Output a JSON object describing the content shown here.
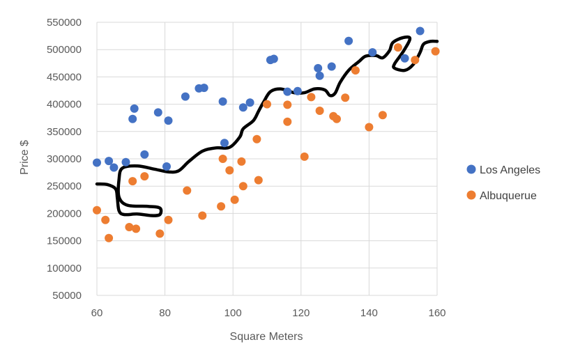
{
  "chart_data": {
    "type": "scatter",
    "title": "",
    "xlabel": "Square Meters",
    "ylabel": "Price $",
    "xlim": [
      60,
      160
    ],
    "ylim": [
      50000,
      550000
    ],
    "x_ticks": [
      "60",
      "80",
      "100",
      "120",
      "140",
      "160"
    ],
    "y_ticks": [
      "50000",
      "100000",
      "150000",
      "200000",
      "250000",
      "300000",
      "350000",
      "400000",
      "450000",
      "500000",
      "550000"
    ],
    "grid": true,
    "legend_position": "right",
    "series": [
      {
        "name": "Los Angeles",
        "color": "#4472c4",
        "points": [
          [
            60,
            293000
          ],
          [
            63.5,
            296000
          ],
          [
            65,
            284000
          ],
          [
            68.5,
            294000
          ],
          [
            70.5,
            373000
          ],
          [
            71,
            392000
          ],
          [
            74,
            308000
          ],
          [
            78,
            385000
          ],
          [
            80.5,
            286000
          ],
          [
            81,
            370000
          ],
          [
            86,
            414000
          ],
          [
            90,
            429000
          ],
          [
            91.5,
            430000
          ],
          [
            97,
            405000
          ],
          [
            97.5,
            329000
          ],
          [
            103,
            394000
          ],
          [
            105,
            403000
          ],
          [
            111,
            481000
          ],
          [
            112,
            483000
          ],
          [
            116,
            423000
          ],
          [
            119,
            424000
          ],
          [
            125,
            466000
          ],
          [
            125.5,
            452000
          ],
          [
            129,
            469000
          ],
          [
            134,
            516000
          ],
          [
            141,
            495000
          ],
          [
            150.5,
            484000
          ],
          [
            155,
            534000
          ]
        ]
      },
      {
        "name": "Albuquerue",
        "color": "#ed7d31",
        "points": [
          [
            60,
            206000
          ],
          [
            62.5,
            188000
          ],
          [
            63.5,
            155000
          ],
          [
            69.5,
            175000
          ],
          [
            70.5,
            259000
          ],
          [
            71.5,
            172000
          ],
          [
            74,
            268000
          ],
          [
            78.5,
            163000
          ],
          [
            81,
            188000
          ],
          [
            86.5,
            242000
          ],
          [
            91,
            196000
          ],
          [
            96.5,
            213000
          ],
          [
            97,
            300000
          ],
          [
            99,
            279000
          ],
          [
            100.5,
            225000
          ],
          [
            102.5,
            295000
          ],
          [
            103,
            250000
          ],
          [
            107,
            336000
          ],
          [
            107.5,
            261000
          ],
          [
            110,
            400000
          ],
          [
            116,
            399000
          ],
          [
            116,
            368000
          ],
          [
            121,
            304000
          ],
          [
            123,
            413000
          ],
          [
            125.5,
            388000
          ],
          [
            129.5,
            378000
          ],
          [
            130.5,
            373000
          ],
          [
            133,
            412000
          ],
          [
            136,
            462000
          ],
          [
            140,
            358000
          ],
          [
            144,
            380000
          ],
          [
            148.5,
            504000
          ],
          [
            153.5,
            481000
          ],
          [
            159.5,
            497000
          ]
        ]
      }
    ],
    "overlay_curve": {
      "color": "#000000",
      "points": [
        [
          60,
          254000
        ],
        [
          63,
          253000
        ],
        [
          65.5,
          245000
        ],
        [
          66,
          228000
        ],
        [
          66.5,
          205000
        ],
        [
          68,
          198000
        ],
        [
          72,
          199000
        ],
        [
          76,
          196000
        ],
        [
          78.5,
          198000
        ],
        [
          78.5,
          210000
        ],
        [
          75,
          213000
        ],
        [
          69,
          215000
        ],
        [
          66.5,
          230000
        ],
        [
          66.5,
          262000
        ],
        [
          67.5,
          283000
        ],
        [
          72,
          287000
        ],
        [
          77,
          281000
        ],
        [
          81,
          276000
        ],
        [
          84,
          278000
        ],
        [
          87,
          295000
        ],
        [
          91,
          314000
        ],
        [
          95,
          320000
        ],
        [
          99,
          321000
        ],
        [
          102,
          340000
        ],
        [
          103,
          355000
        ],
        [
          106,
          370000
        ],
        [
          107.5,
          387000
        ],
        [
          109,
          404000
        ],
        [
          111,
          423000
        ],
        [
          114,
          428000
        ],
        [
          118,
          421000
        ],
        [
          121,
          421000
        ],
        [
          124,
          428000
        ],
        [
          127,
          426000
        ],
        [
          128.5,
          416000
        ],
        [
          130,
          420000
        ],
        [
          131.5,
          440000
        ],
        [
          134,
          462000
        ],
        [
          137,
          478000
        ],
        [
          139,
          488000
        ],
        [
          142,
          489000
        ],
        [
          144,
          485000
        ],
        [
          146,
          498000
        ],
        [
          147,
          513000
        ],
        [
          150,
          522000
        ],
        [
          152,
          520000
        ],
        [
          150,
          496000
        ],
        [
          147.5,
          474000
        ],
        [
          147.5,
          466000
        ],
        [
          150.5,
          462000
        ],
        [
          153,
          473000
        ],
        [
          155,
          495000
        ],
        [
          156,
          510000
        ],
        [
          158,
          515000
        ],
        [
          160,
          515000
        ]
      ]
    }
  }
}
